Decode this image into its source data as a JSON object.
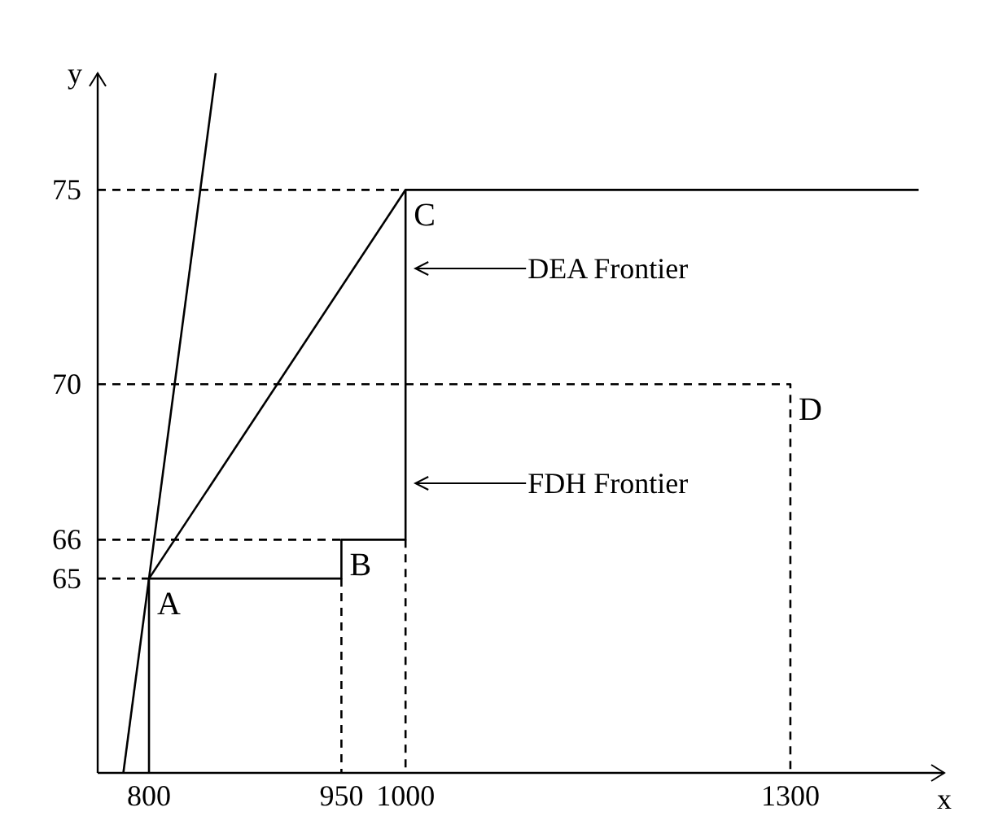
{
  "chart_data": {
    "type": "line",
    "xlabel": "x",
    "ylabel": "y",
    "xlim": [
      760,
      1420
    ],
    "ylim": [
      60,
      78
    ],
    "xticks": [
      800,
      950,
      1000,
      1300
    ],
    "yticks": [
      65,
      66,
      70,
      75
    ],
    "grid": false,
    "series": [
      {
        "color": "#000000",
        "line_style": "solid",
        "x": [
          800,
          800,
          950,
          950,
          1000,
          1000,
          1400
        ],
        "values": [
          60,
          65,
          65,
          66,
          66,
          75,
          75
        ]
      },
      {
        "color": "#000000",
        "line_style": "solid",
        "x": [
          800,
          1000
        ],
        "values": [
          65,
          75
        ]
      },
      {
        "color": "#000000",
        "line_style": "solid",
        "x": [
          780,
          852
        ],
        "values": [
          60,
          78
        ]
      },
      {
        "color": "#000000",
        "line_style": "dashed",
        "x": [
          760,
          1000
        ],
        "values": [
          75,
          75
        ]
      },
      {
        "color": "#000000",
        "line_style": "dashed",
        "x": [
          760,
          1300,
          1300
        ],
        "values": [
          70,
          70,
          60
        ]
      },
      {
        "color": "#000000",
        "line_style": "dashed",
        "x": [
          760,
          950
        ],
        "values": [
          66,
          66
        ]
      },
      {
        "color": "#000000",
        "line_style": "dashed",
        "x": [
          760,
          800
        ],
        "values": [
          65,
          65
        ]
      },
      {
        "color": "#000000",
        "line_style": "dashed",
        "x": [
          950,
          950
        ],
        "values": [
          65,
          60
        ]
      },
      {
        "color": "#000000",
        "line_style": "dashed",
        "x": [
          1000,
          1000
        ],
        "values": [
          66,
          60
        ]
      }
    ],
    "annotations": [
      {
        "text": "A",
        "x": 800,
        "y": 65
      },
      {
        "text": "B",
        "x": 950,
        "y": 66
      },
      {
        "text": "C",
        "x": 1000,
        "y": 75
      },
      {
        "text": "D",
        "x": 1300,
        "y": 70
      },
      "DEA Frontier",
      "FDH Frontier"
    ]
  }
}
